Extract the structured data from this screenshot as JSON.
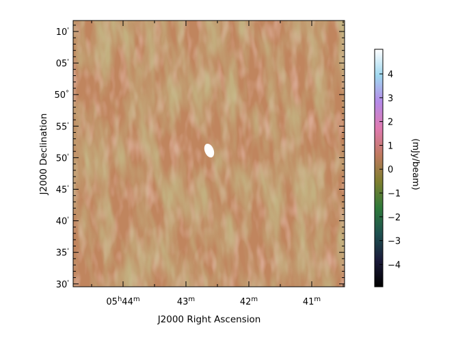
{
  "chart_data": {
    "type": "heatmap",
    "xlabel": "J2000 Right Ascension",
    "ylabel": "J2000 Declination",
    "x_ticks": [
      {
        "h": "05",
        "hsup": "h",
        "m": "44",
        "msup": "m"
      },
      {
        "h": "",
        "hsup": "",
        "m": "43",
        "msup": "m"
      },
      {
        "h": "",
        "hsup": "",
        "m": "42",
        "msup": "m"
      },
      {
        "h": "",
        "hsup": "",
        "m": "41",
        "msup": "m"
      }
    ],
    "y_ticks": [
      {
        "value": "10",
        "unit": "'"
      },
      {
        "value": "05",
        "unit": "'"
      },
      {
        "value": "50",
        "unit": "°"
      },
      {
        "value": "55",
        "unit": "'"
      },
      {
        "value": "50",
        "unit": "'"
      },
      {
        "value": "45",
        "unit": "'"
      },
      {
        "value": "40",
        "unit": "'"
      },
      {
        "value": "35",
        "unit": "'"
      },
      {
        "value": "30",
        "unit": "'"
      }
    ],
    "colorbar": {
      "label": "(mJy/beam)",
      "ticks": [
        "4",
        "3",
        "2",
        "1",
        "0",
        "−1",
        "−2",
        "−3",
        "−4"
      ],
      "range": [
        -4.9,
        4.9
      ],
      "colormap": "cubehelix-like",
      "stops": [
        "#000000",
        "#1a1a3a",
        "#1e5050",
        "#2f7a3a",
        "#7f7f30",
        "#c07a60",
        "#e07ab0",
        "#b58ae8",
        "#9fd8f0",
        "#ffffff"
      ]
    },
    "image": {
      "background_color": "#c0855e",
      "features": [
        {
          "kind": "point_source",
          "brightness": "saturated",
          "color": "#ffffff"
        },
        {
          "kind": "residual_stripes",
          "orientation": "near-vertical",
          "colors": [
            "#94843c",
            "#d58f7e"
          ]
        }
      ]
    }
  }
}
